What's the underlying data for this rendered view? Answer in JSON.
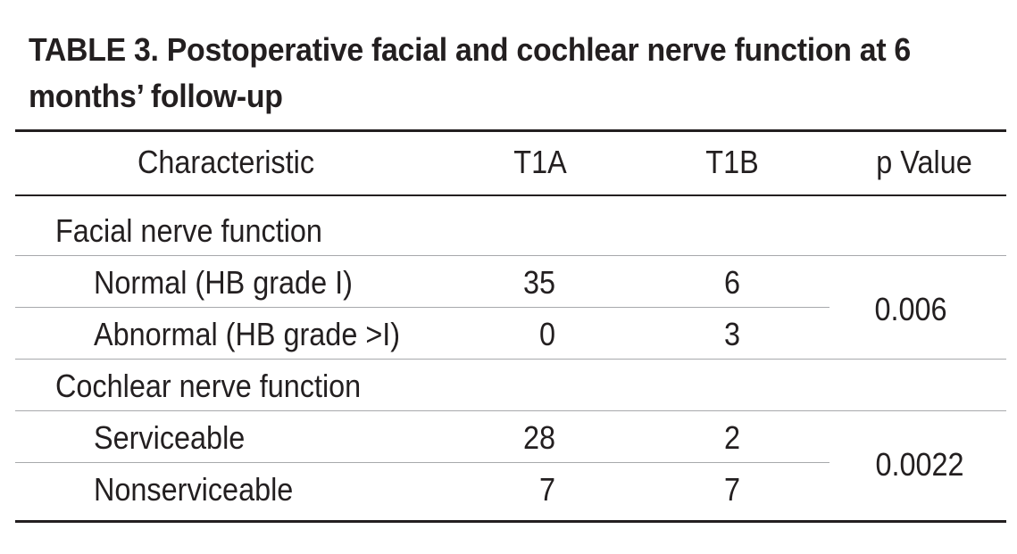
{
  "table": {
    "caption": "TABLE 3. Postoperative facial and cochlear nerve function at 6 months’ follow-up",
    "headers": {
      "characteristic": "Characteristic",
      "t1a": "T1A",
      "t1b": "T1B",
      "p_value": "p Value"
    },
    "sections": [
      {
        "title": "Facial nerve function",
        "p_value": "0.006",
        "rows": [
          {
            "label": "Normal (HB grade I)",
            "t1a": "35",
            "t1b": "6"
          },
          {
            "label": "Abnormal (HB grade >I)",
            "t1a": "0",
            "t1b": "3"
          }
        ]
      },
      {
        "title": "Cochlear nerve function",
        "p_value": "0.0022",
        "rows": [
          {
            "label": "Serviceable",
            "t1a": "28",
            "t1b": "2"
          },
          {
            "label": "Nonserviceable",
            "t1a": "7",
            "t1b": "7"
          }
        ]
      }
    ]
  }
}
